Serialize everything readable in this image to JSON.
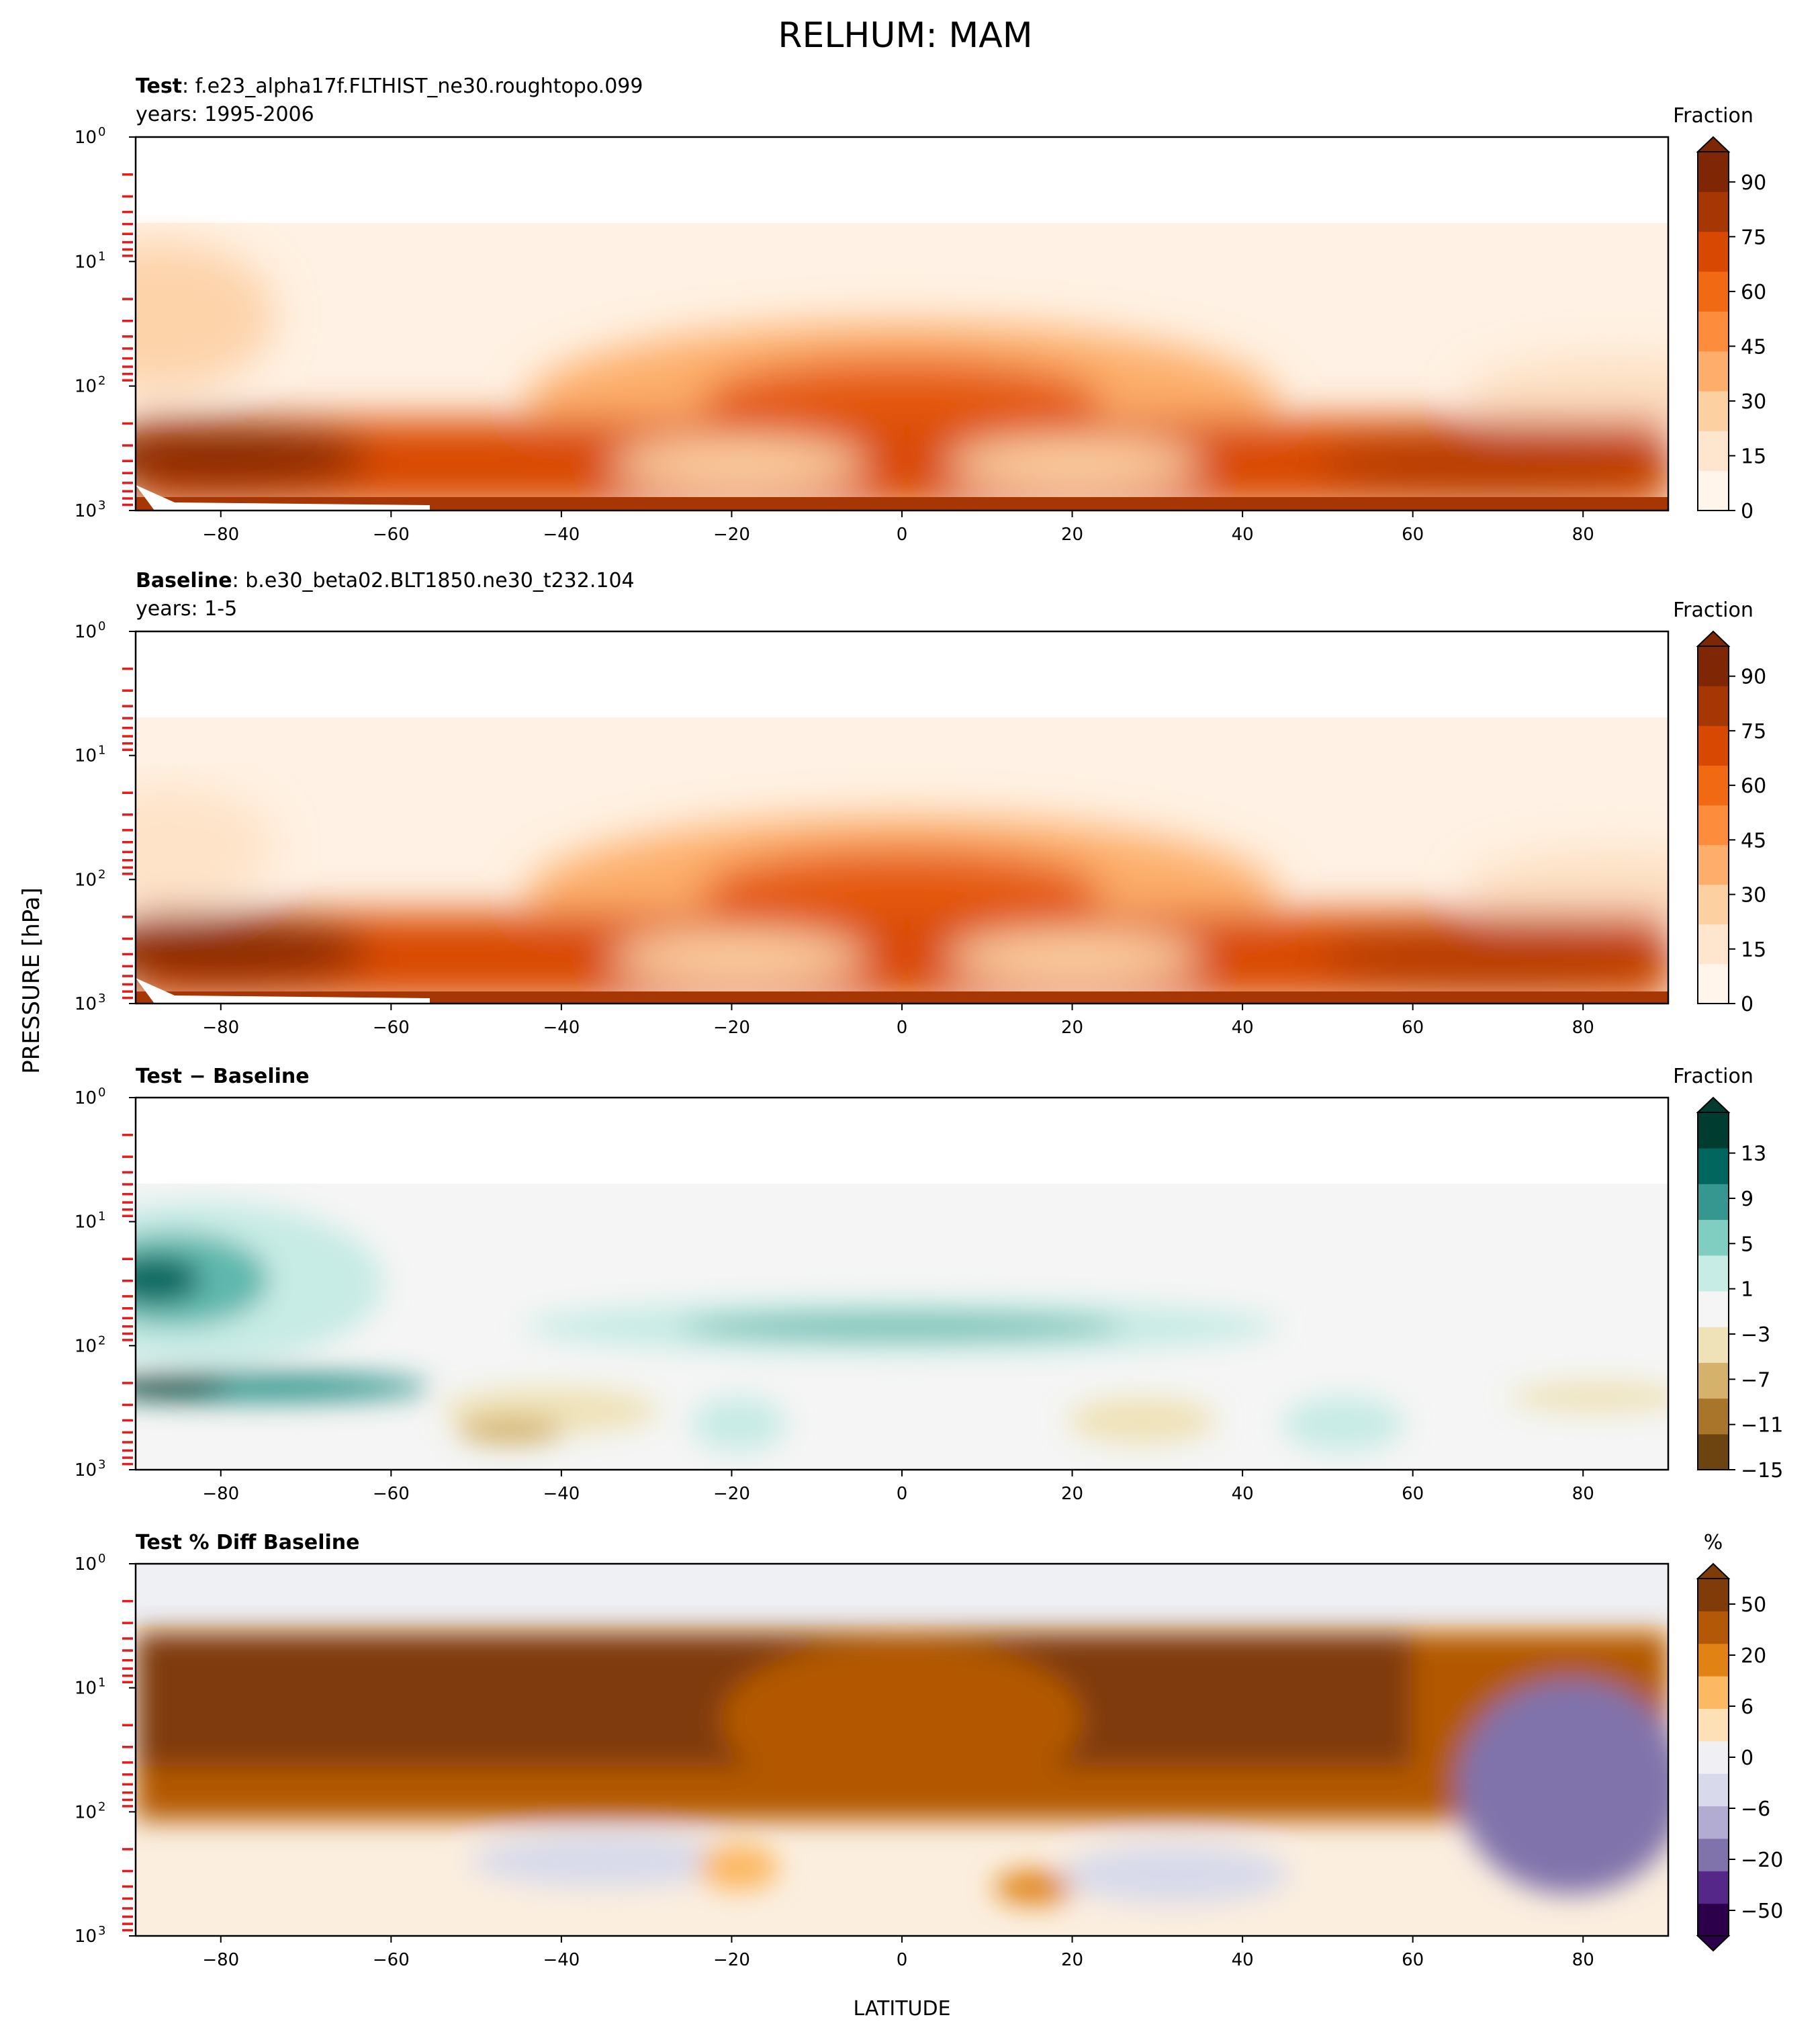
{
  "figure": {
    "title": "RELHUM: MAM",
    "ylabel": "PRESSURE [hPa]",
    "xlabel": "LATITUDE"
  },
  "chart_data": [
    {
      "type": "heatmap",
      "id": "test",
      "title_bold": "Test",
      "title_rest": ": f.e23_alpha17f.FLTHIST_ne30.roughtopo.099",
      "subtitle": "years: 1995-2006",
      "x_ticks": [
        -80,
        -60,
        -40,
        -20,
        0,
        20,
        40,
        60,
        80
      ],
      "xlim": [
        -90,
        90
      ],
      "y_scale": "log",
      "ylim": [
        1000,
        1
      ],
      "y_ticks": [
        "10",
        "10",
        "10",
        "10"
      ],
      "y_tick_exponents": [
        "0",
        "1",
        "2",
        "3"
      ],
      "colorbar": {
        "label": "Fraction",
        "ticks": [
          "0",
          "15",
          "30",
          "45",
          "60",
          "75",
          "90"
        ],
        "range": [
          0,
          100
        ],
        "extend": "max",
        "colormap": [
          "#fff5eb",
          "#fee6ce",
          "#fdd0a2",
          "#fdae6b",
          "#fd8d3c",
          "#f16913",
          "#d94801",
          "#a63603",
          "#7f2704"
        ]
      }
    },
    {
      "type": "heatmap",
      "id": "baseline",
      "title_bold": "Baseline",
      "title_rest": ": b.e30_beta02.BLT1850.ne30_t232.104",
      "subtitle": "years: 1-5",
      "x_ticks": [
        -80,
        -60,
        -40,
        -20,
        0,
        20,
        40,
        60,
        80
      ],
      "xlim": [
        -90,
        90
      ],
      "y_scale": "log",
      "ylim": [
        1000,
        1
      ],
      "y_ticks": [
        "10",
        "10",
        "10",
        "10"
      ],
      "y_tick_exponents": [
        "0",
        "1",
        "2",
        "3"
      ],
      "colorbar": {
        "label": "Fraction",
        "ticks": [
          "0",
          "15",
          "30",
          "45",
          "60",
          "75",
          "90"
        ],
        "range": [
          0,
          100
        ],
        "extend": "max",
        "colormap": [
          "#fff5eb",
          "#fee6ce",
          "#fdd0a2",
          "#fdae6b",
          "#fd8d3c",
          "#f16913",
          "#d94801",
          "#a63603",
          "#7f2704"
        ]
      }
    },
    {
      "type": "heatmap",
      "id": "diff",
      "title_bold": "Test − Baseline",
      "title_rest": "",
      "subtitle": "",
      "x_ticks": [
        -80,
        -60,
        -40,
        -20,
        0,
        20,
        40,
        60,
        80
      ],
      "xlim": [
        -90,
        90
      ],
      "y_scale": "log",
      "ylim": [
        1000,
        1
      ],
      "y_ticks": [
        "10",
        "10",
        "10",
        "10"
      ],
      "y_tick_exponents": [
        "0",
        "1",
        "2",
        "3"
      ],
      "colorbar": {
        "label": "Fraction",
        "ticks": [
          "−15",
          "−11",
          "−7",
          "−3",
          "1",
          "5",
          "9",
          "13"
        ],
        "range": [
          -15,
          15
        ],
        "extend": "max",
        "colormap": [
          "#6b4410",
          "#a8752a",
          "#d4b26c",
          "#efe2b8",
          "#f5f5f5",
          "#c7ebe5",
          "#80cdc1",
          "#35978f",
          "#01665e",
          "#003c30"
        ]
      }
    },
    {
      "type": "heatmap",
      "id": "pctdiff",
      "title_bold": "Test % Diff Baseline",
      "title_rest": "",
      "subtitle": "",
      "x_ticks": [
        -80,
        -60,
        -40,
        -20,
        0,
        20,
        40,
        60,
        80
      ],
      "xlim": [
        -90,
        90
      ],
      "y_scale": "log",
      "ylim": [
        1000,
        1
      ],
      "y_ticks": [
        "10",
        "10",
        "10",
        "10"
      ],
      "y_tick_exponents": [
        "0",
        "1",
        "2",
        "3"
      ],
      "colorbar": {
        "label": "%",
        "ticks": [
          "−50",
          "−20",
          "−6",
          "0",
          "6",
          "20",
          "50"
        ],
        "range": [
          -100,
          100
        ],
        "extend": "both",
        "colormap": [
          "#2d004b",
          "#542788",
          "#8073ac",
          "#b2abd2",
          "#d8daeb",
          "#f0f0f4",
          "#fee0b6",
          "#fdb863",
          "#e08214",
          "#b35806",
          "#7f3b08"
        ]
      }
    }
  ]
}
